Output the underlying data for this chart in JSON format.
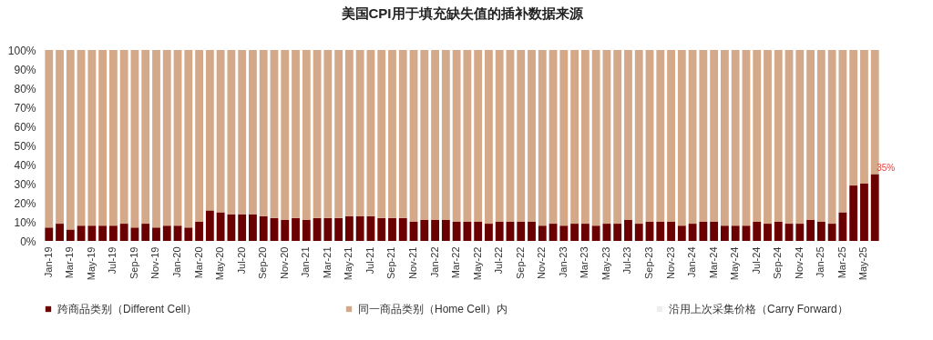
{
  "chart_data": {
    "type": "bar",
    "title": "美国CPI用于填充缺失值的插补数据来源",
    "stacked": true,
    "legend": "bottom",
    "grid": false,
    "categories": [
      "Jan-19",
      null,
      "Mar-19",
      null,
      "May-19",
      null,
      "Jul-19",
      null,
      "Sep-19",
      null,
      "Nov-19",
      null,
      "Jan-20",
      null,
      "Mar-20",
      null,
      "May-20",
      null,
      "Jul-20",
      null,
      "Sep-20",
      null,
      "Nov-20",
      null,
      "Jan-21",
      null,
      "Mar-21",
      null,
      "May-21",
      null,
      "Jul-21",
      null,
      "Sep-21",
      null,
      "Nov-21",
      null,
      "Jan-22",
      null,
      "Mar-22",
      null,
      "May-22",
      null,
      "Jul-22",
      null,
      "Sep-22",
      null,
      "Nov-22",
      null,
      "Jan-23",
      null,
      "Mar-23",
      null,
      "May-23",
      null,
      "Jul-23",
      null,
      "Sep-23",
      null,
      "Nov-23",
      null,
      "Jan-24",
      null,
      "Mar-24",
      null,
      "May-24",
      null,
      "Jul-24",
      null,
      "Sep-24",
      null,
      "Nov-24",
      null,
      "Jan-25",
      null,
      "Mar-25",
      null,
      "May-25",
      null
    ],
    "ylim": [
      0,
      100
    ],
    "yticks": [
      {
        "value": 0,
        "label": "0%"
      },
      {
        "value": 10,
        "label": "10%"
      },
      {
        "value": 20,
        "label": "20%"
      },
      {
        "value": 30,
        "label": "30%"
      },
      {
        "value": 40,
        "label": "40%"
      },
      {
        "value": 50,
        "label": "50%"
      },
      {
        "value": 60,
        "label": "60%"
      },
      {
        "value": 70,
        "label": "70%"
      },
      {
        "value": 80,
        "label": "80%"
      },
      {
        "value": 90,
        "label": "90%"
      },
      {
        "value": 100,
        "label": "100%"
      }
    ],
    "series": [
      {
        "name": "跨商品类别（Different Cell）",
        "color": "#6b0000",
        "values": [
          7,
          9,
          6,
          8,
          8,
          8,
          8,
          9,
          7,
          9,
          7,
          8,
          8,
          7,
          10,
          16,
          15,
          14,
          14,
          14,
          13,
          12,
          11,
          12,
          11,
          12,
          12,
          12,
          13,
          13,
          13,
          12,
          12,
          12,
          10,
          11,
          11,
          11,
          10,
          10,
          10,
          9,
          10,
          10,
          10,
          10,
          8,
          9,
          8,
          9,
          9,
          8,
          9,
          9,
          11,
          9,
          10,
          10,
          10,
          8,
          9,
          10,
          10,
          8,
          8,
          8,
          10,
          9,
          10,
          9,
          9,
          11,
          10,
          9,
          15,
          29,
          30,
          35
        ],
        "value_labels": [
          null,
          null,
          null,
          null,
          null,
          null,
          null,
          null,
          null,
          null,
          null,
          null,
          null,
          null,
          null,
          null,
          null,
          null,
          null,
          null,
          null,
          null,
          null,
          null,
          null,
          null,
          null,
          null,
          null,
          null,
          null,
          null,
          null,
          null,
          null,
          null,
          null,
          null,
          null,
          null,
          null,
          null,
          null,
          null,
          null,
          null,
          null,
          null,
          null,
          null,
          null,
          null,
          null,
          null,
          null,
          null,
          null,
          null,
          null,
          null,
          null,
          null,
          null,
          null,
          null,
          null,
          null,
          null,
          null,
          null,
          null,
          null,
          null,
          null,
          null,
          null,
          null,
          "35%"
        ]
      },
      {
        "name": "同一商品类别（Home Cell）内",
        "color": "#d4a98a",
        "values": [
          93,
          91,
          94,
          92,
          92,
          92,
          92,
          91,
          93,
          91,
          93,
          92,
          92,
          93,
          90,
          84,
          85,
          86,
          86,
          86,
          87,
          88,
          89,
          88,
          89,
          88,
          88,
          88,
          87,
          87,
          87,
          88,
          88,
          88,
          90,
          89,
          89,
          89,
          90,
          90,
          90,
          91,
          90,
          90,
          90,
          90,
          92,
          91,
          92,
          91,
          91,
          92,
          91,
          91,
          89,
          91,
          90,
          90,
          90,
          92,
          91,
          90,
          90,
          92,
          92,
          92,
          90,
          91,
          90,
          91,
          91,
          89,
          90,
          91,
          85,
          71,
          70,
          65
        ]
      },
      {
        "name": "沿用上次采集价格（Carry Forward）",
        "color": "#eeeeee",
        "values": [
          0,
          0,
          0,
          0,
          0,
          0,
          0,
          0,
          0,
          0,
          0,
          0,
          0,
          0,
          0,
          0,
          0,
          0,
          0,
          0,
          0,
          0,
          0,
          0,
          0,
          0,
          0,
          0,
          0,
          0,
          0,
          0,
          0,
          0,
          0,
          0,
          0,
          0,
          0,
          0,
          0,
          0,
          0,
          0,
          0,
          0,
          0,
          0,
          0,
          0,
          0,
          0,
          0,
          0,
          0,
          0,
          0,
          0,
          0,
          0,
          0,
          0,
          0,
          0,
          0,
          0,
          0,
          0,
          0,
          0,
          0,
          0,
          0,
          0,
          0,
          0,
          0,
          0
        ]
      }
    ]
  }
}
